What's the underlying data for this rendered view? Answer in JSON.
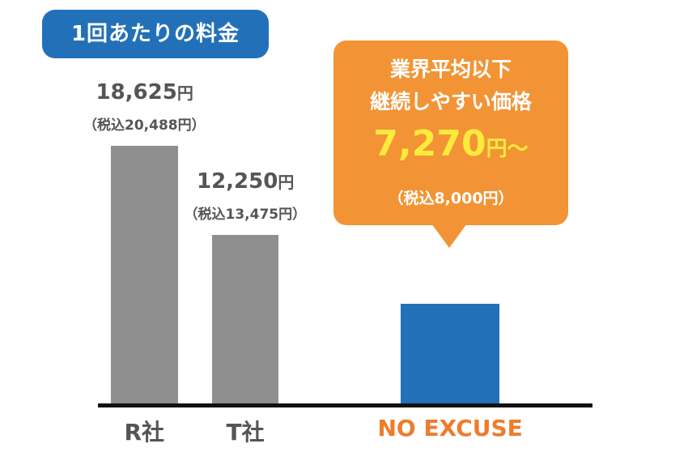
{
  "title": "1回あたりの料金",
  "callout": {
    "line1": "業界平均以下",
    "line2": "継続しやすい価格",
    "price": "7,270",
    "price_suffix": "円〜",
    "tax_included": "（税込8,000円）"
  },
  "colors": {
    "gray_bar": "#8f8f8f",
    "blue_bar": "#2271b8",
    "callout": "#f29435",
    "price_text": "#fdea3c",
    "highlight_label": "#ee7c2c"
  },
  "chart_data": {
    "type": "bar",
    "categories": [
      "R社",
      "T社",
      "NO EXCUSE"
    ],
    "values": [
      18625,
      12250,
      7270
    ],
    "value_labels": [
      "18,625",
      "12,250",
      ""
    ],
    "value_unit": "円",
    "tax_labels": [
      "（税込20,488円）",
      "（税込13,475円）",
      "（税込8,000円）"
    ],
    "ylim": [
      0,
      19000
    ],
    "grid": false,
    "legend": "none"
  }
}
